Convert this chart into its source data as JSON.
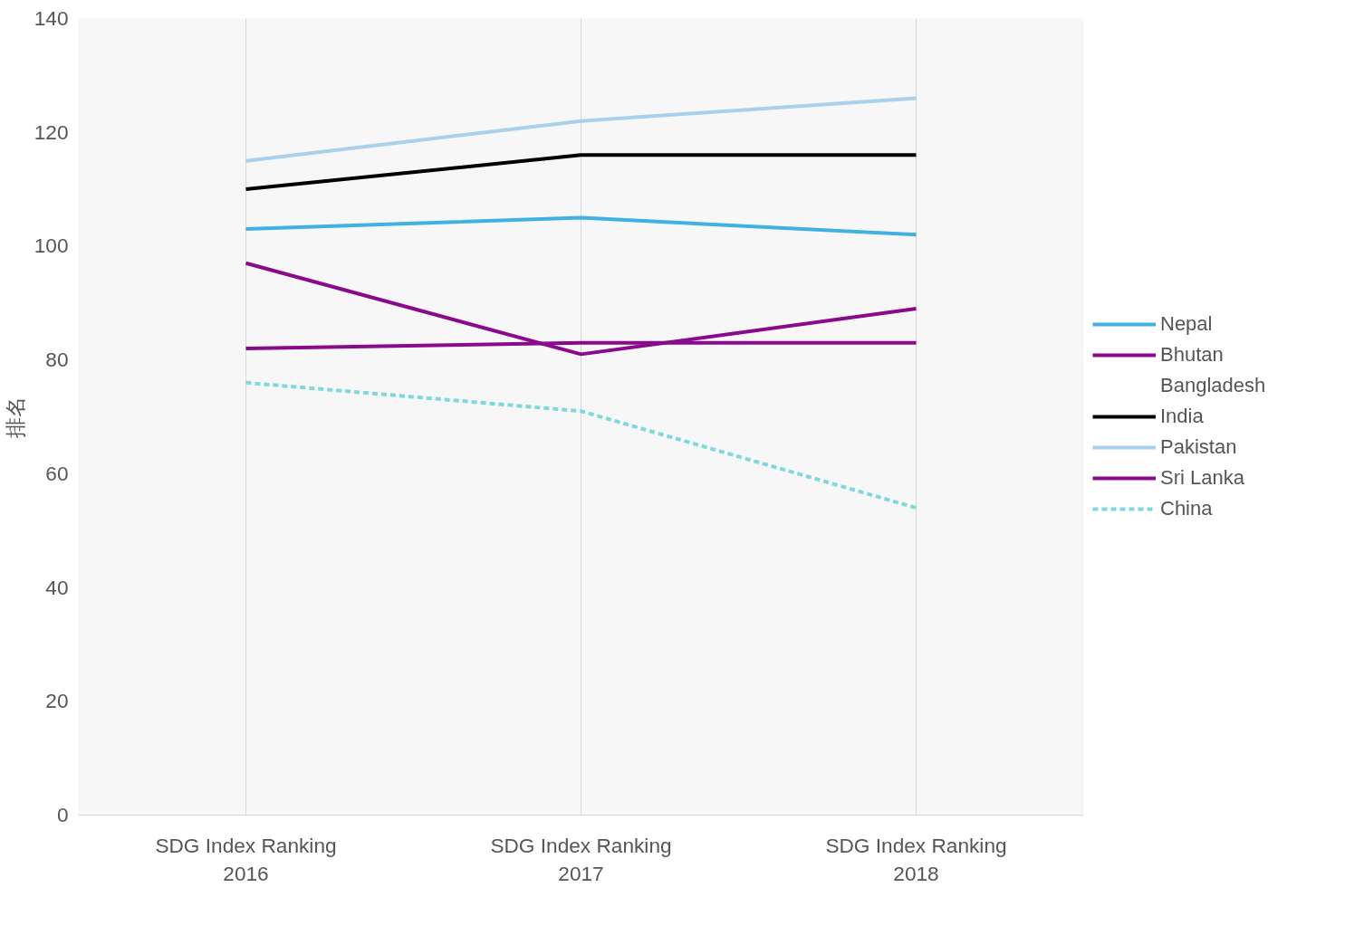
{
  "chart_data": {
    "type": "line",
    "ylabel": "排名",
    "categories": [
      "SDG Index Ranking\n2016",
      "SDG Index Ranking\n2017",
      "SDG Index Ranking\n2018"
    ],
    "series": [
      {
        "name": "Nepal",
        "color": "#41b0e4",
        "values": [
          103,
          105,
          102
        ]
      },
      {
        "name": "Bhutan",
        "color": "#8a0a8d",
        "values": [
          82,
          83,
          83
        ]
      },
      {
        "name": "Bangladesh",
        "values": [
          null,
          null,
          null
        ]
      },
      {
        "name": "India",
        "color": "#000000",
        "values": [
          110,
          116,
          116
        ]
      },
      {
        "name": "Pakistan",
        "color": "#a9d0ed",
        "values": [
          115,
          122,
          126
        ]
      },
      {
        "name": "Sri Lanka",
        "color": "#8a0a8d",
        "values": [
          97,
          81,
          89
        ]
      },
      {
        "name": "China",
        "color": "#7fd8e0",
        "values": [
          76,
          71,
          54
        ],
        "line_style": "dashed"
      }
    ],
    "ylim": [
      0,
      140
    ],
    "yticks": [
      0,
      20,
      40,
      60,
      80,
      100,
      120,
      140
    ],
    "grid": "x",
    "legend": "right",
    "line_style": "solid"
  }
}
